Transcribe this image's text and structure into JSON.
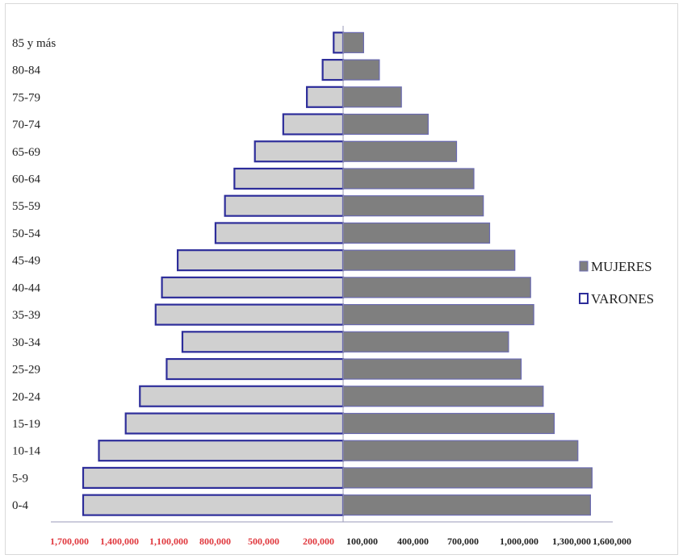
{
  "chart_data": {
    "type": "bar",
    "orientation": "horizontal",
    "subtype": "population-pyramid",
    "categories": [
      "0-4",
      "5-9",
      "10-14",
      "15-19",
      "20-24",
      "25-29",
      "30-34",
      "35-39",
      "40-44",
      "45-49",
      "50-54",
      "55-59",
      "60-64",
      "65-69",
      "70-74",
      "75-79",
      "80-84",
      "85 y más"
    ],
    "series": [
      {
        "name": "MUJERES",
        "side": "right",
        "color": "#7f7f7f",
        "values": [
          1570000,
          1580000,
          1490000,
          1340000,
          1270000,
          1130000,
          1050000,
          1210000,
          1190000,
          1090000,
          930000,
          890000,
          830000,
          720000,
          540000,
          370000,
          230000,
          130000
        ]
      },
      {
        "name": "VARONES",
        "side": "left",
        "color": "#d0d0d0",
        "border_color": "#2d2d9a",
        "values": [
          1650000,
          1650000,
          1550000,
          1380000,
          1290000,
          1120000,
          1020000,
          1190000,
          1150000,
          1050000,
          810000,
          750000,
          690000,
          560000,
          380000,
          230000,
          130000,
          60000
        ]
      }
    ],
    "xticks_left": [
      "1,700,000",
      "1,400,000",
      "1,100,000",
      "800,000",
      "500,000",
      "200,000"
    ],
    "xticks_right": [
      "100,000",
      "400,000",
      "700,000",
      "1,000,000",
      "1,300,000",
      "1,600,000"
    ],
    "left_tick_color": "#e0383e",
    "right_tick_color": "#222222",
    "legend": {
      "position": "right",
      "items": [
        "MUJERES",
        "VARONES"
      ]
    },
    "grid": false
  }
}
